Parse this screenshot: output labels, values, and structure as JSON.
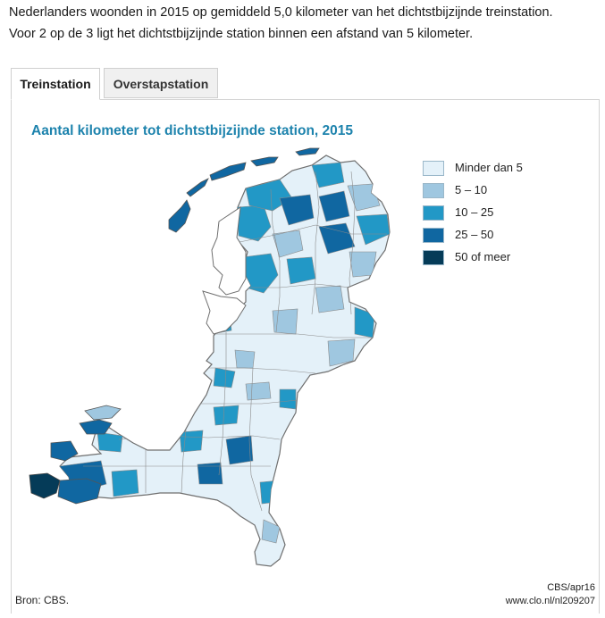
{
  "intro": {
    "line1": "Nederlanders woonden in 2015 op gemiddeld 5,0 kilometer van het dichtstbijzijnde treinstation.",
    "line2": "Voor 2 op de 3 ligt het dichtstbijzijnde station binnen een afstand van 5 kilometer."
  },
  "tabs": [
    {
      "label": "Treinstation",
      "active": true
    },
    {
      "label": "Overstapstation",
      "active": false
    }
  ],
  "map": {
    "title": "Aantal kilometer tot dichtstbijzijnde station, 2015",
    "legend": [
      {
        "label": "Minder dan 5",
        "color": "#e4f1f9"
      },
      {
        "label": "5 – 10",
        "color": "#9fc7e0"
      },
      {
        "label": "10 – 25",
        "color": "#2298c6"
      },
      {
        "label": "25 – 50",
        "color": "#1067a1"
      },
      {
        "label": "50 of meer",
        "color": "#053b58"
      }
    ],
    "boundary_color": "#6f6f6f"
  },
  "footer": {
    "source": "Bron: CBS.",
    "credit_line1": "CBS/apr16",
    "credit_line2": "www.clo.nl/nl209207"
  }
}
